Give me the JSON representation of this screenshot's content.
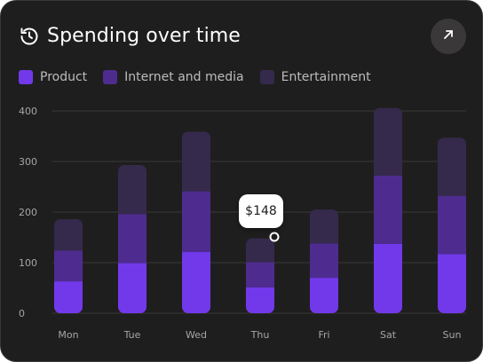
{
  "header": {
    "title": "Spending over time",
    "history_icon": "history-icon",
    "expand_icon": "arrow-up-right-icon"
  },
  "legend": [
    {
      "label": "Product",
      "color": "#7239ea"
    },
    {
      "label": "Internet and media",
      "color": "#4e2c8f"
    },
    {
      "label": "Entertainment",
      "color": "#352a4c"
    }
  ],
  "tooltip": {
    "text": "$148",
    "category": "Thu"
  },
  "chart_data": {
    "type": "bar",
    "stacked": true,
    "categories": [
      "Mon",
      "Tue",
      "Wed",
      "Thu",
      "Fri",
      "Sat",
      "Sun"
    ],
    "series": [
      {
        "name": "Product",
        "values": [
          63,
          99,
          121,
          51,
          70,
          137,
          117
        ]
      },
      {
        "name": "Internet and media",
        "values": [
          61,
          97,
          120,
          50,
          68,
          135,
          115
        ]
      },
      {
        "name": "Entertainment",
        "values": [
          62,
          97,
          118,
          47,
          67,
          134,
          115
        ]
      }
    ],
    "yticks": [
      0,
      100,
      200,
      300,
      400
    ],
    "ylim": [
      0,
      400
    ],
    "grid": true,
    "legend_position": "top-left"
  }
}
